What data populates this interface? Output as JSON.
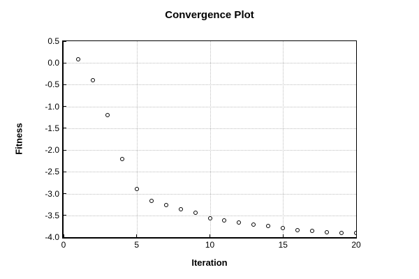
{
  "chart_data": {
    "type": "scatter",
    "title": "Convergence Plot",
    "xlabel": "Iteration",
    "ylabel": "Fitness",
    "x": [
      1,
      2,
      3,
      4,
      5,
      6,
      7,
      8,
      9,
      10,
      11,
      12,
      13,
      14,
      15,
      16,
      17,
      18,
      19,
      20
    ],
    "y": [
      0.08,
      -0.4,
      -1.2,
      -2.2,
      -2.9,
      -3.16,
      -3.26,
      -3.36,
      -3.44,
      -3.56,
      -3.61,
      -3.67,
      -3.71,
      -3.75,
      -3.79,
      -3.84,
      -3.86,
      -3.89,
      -3.91,
      -3.9
    ],
    "xlim": [
      0,
      20
    ],
    "ylim": [
      -4.0,
      0.5
    ],
    "xticks": {
      "values": [
        0,
        5,
        10,
        15,
        20
      ],
      "labels": [
        "0",
        "5",
        "10",
        "15",
        "20"
      ]
    },
    "yticks": {
      "values": [
        0.5,
        0.0,
        -0.5,
        -1.0,
        -1.5,
        -2.0,
        -2.5,
        -3.0,
        -3.5,
        -4.0
      ],
      "labels": [
        "0.5",
        "0.0",
        "-0.5",
        "-1.0",
        "-1.5",
        "-2.0",
        "-2.5",
        "-3.0",
        "-3.5",
        "-4.0"
      ]
    },
    "grid": true,
    "legend": false,
    "marker": "open-circle",
    "colors": {
      "marker_stroke": "#000000",
      "marker_fill": "#ffffff",
      "grid": "#bdbdbd",
      "axis": "#000000",
      "text": "#000000",
      "background": "#ffffff"
    }
  }
}
